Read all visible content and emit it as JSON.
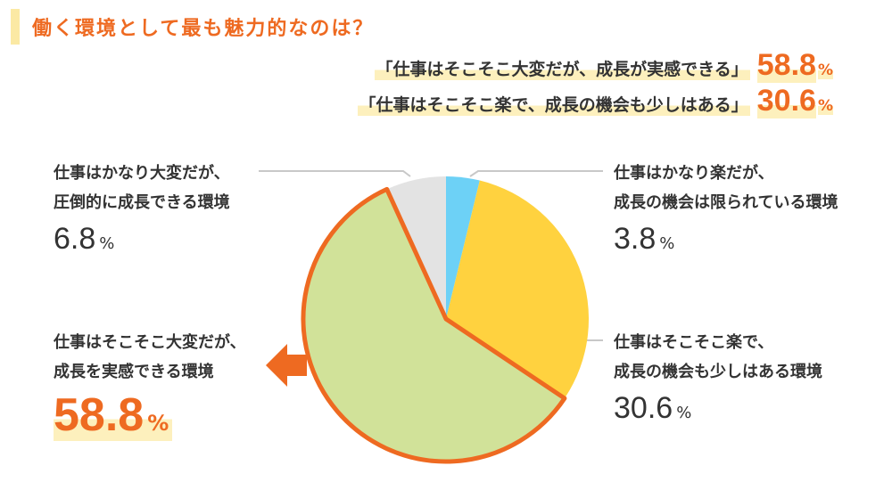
{
  "title": "働く環境として最も魅力的なのは？",
  "summary": [
    {
      "quote": "「仕事はそこそこ大変だが、成長が実感できる」",
      "value": "58.8",
      "unit": "%"
    },
    {
      "quote": "「仕事はそこそこ楽で、成長の機会も少しはある」",
      "value": "30.6",
      "unit": "%"
    }
  ],
  "colors": {
    "accent": "#ee6a21",
    "highlight": "#fdf0bd",
    "slice_blue": "#6dd1f6",
    "slice_yellow": "#ffd23f",
    "slice_green": "#d1e299",
    "slice_gray": "#e3e3e3"
  },
  "chart_data": {
    "type": "pie",
    "unit": "%",
    "highlighted": "仕事はそこそこ大変だが、成長を実感できる環境",
    "slices": [
      {
        "label_lines": [
          "仕事はかなり楽だが、",
          "成長の機会は限られている環境"
        ],
        "value": 3.8,
        "value_text": "3.8",
        "color": "#6dd1f6"
      },
      {
        "label_lines": [
          "仕事はそこそこ楽で、",
          "成長の機会も少しはある環境"
        ],
        "value": 30.6,
        "value_text": "30.6",
        "color": "#ffd23f"
      },
      {
        "label_lines": [
          "仕事はそこそこ大変だが、",
          "成長を実感できる環境"
        ],
        "value": 58.8,
        "value_text": "58.8",
        "color": "#d1e299",
        "highlight": true
      },
      {
        "label_lines": [
          "仕事はかなり大変だが、",
          "圧倒的に成長できる環境"
        ],
        "value": 6.8,
        "value_text": "6.8",
        "color": "#e3e3e3"
      }
    ]
  }
}
